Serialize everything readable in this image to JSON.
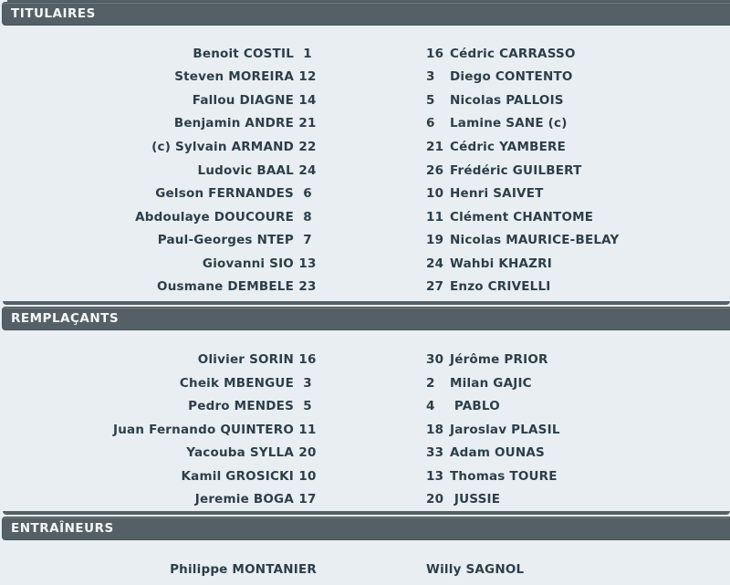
{
  "colors": {
    "page_bg": "#e8eef1",
    "header_bg": "#556066",
    "header_border": "#4a545b",
    "header_text": "#f5f7f8",
    "player_text": "#2d3e49"
  },
  "sections": [
    {
      "title": "TITULAIRES",
      "left": [
        {
          "name": "Benoit COSTIL",
          "num": "1"
        },
        {
          "name": "Steven MOREIRA",
          "num": "12"
        },
        {
          "name": "Fallou DIAGNE",
          "num": "14"
        },
        {
          "name": "Benjamin ANDRE",
          "num": "21"
        },
        {
          "name": "(c) Sylvain ARMAND",
          "num": "22"
        },
        {
          "name": "Ludovic BAAL",
          "num": "24"
        },
        {
          "name": "Gelson FERNANDES",
          "num": "6"
        },
        {
          "name": "Abdoulaye DOUCOURE",
          "num": "8"
        },
        {
          "name": "Paul-Georges NTEP",
          "num": "7"
        },
        {
          "name": "Giovanni SIO",
          "num": "13"
        },
        {
          "name": "Ousmane DEMBELE",
          "num": "23"
        }
      ],
      "right": [
        {
          "num": "16",
          "name": "Cédric CARRASSO"
        },
        {
          "num": "3",
          "name": "Diego CONTENTO"
        },
        {
          "num": "5",
          "name": "Nicolas PALLOIS"
        },
        {
          "num": "6",
          "name": "Lamine SANE (c)"
        },
        {
          "num": "21",
          "name": "Cédric YAMBERE"
        },
        {
          "num": "26",
          "name": "Frédéric GUILBERT"
        },
        {
          "num": "10",
          "name": "Henri SAIVET"
        },
        {
          "num": "11",
          "name": "Clément CHANTOME"
        },
        {
          "num": "19",
          "name": "Nicolas MAURICE-BELAY"
        },
        {
          "num": "24",
          "name": "Wahbi KHAZRI"
        },
        {
          "num": "27",
          "name": "Enzo CRIVELLI"
        }
      ]
    },
    {
      "title": "REMPLAÇANTS",
      "left": [
        {
          "name": "Olivier SORIN",
          "num": "16"
        },
        {
          "name": "Cheik MBENGUE",
          "num": "3"
        },
        {
          "name": "Pedro MENDES",
          "num": "5"
        },
        {
          "name": "Juan Fernando QUINTERO",
          "num": "11"
        },
        {
          "name": "Yacouba SYLLA",
          "num": "20"
        },
        {
          "name": "Kamil GROSICKI",
          "num": "10"
        },
        {
          "name": "Jeremie BOGA",
          "num": "17"
        }
      ],
      "right": [
        {
          "num": "30",
          "name": "Jérôme PRIOR"
        },
        {
          "num": "2",
          "name": "Milan GAJIC"
        },
        {
          "num": "4",
          "name": " PABLO"
        },
        {
          "num": "18",
          "name": "Jaroslav PLASIL"
        },
        {
          "num": "33",
          "name": "Adam OUNAS"
        },
        {
          "num": "13",
          "name": "Thomas TOURE"
        },
        {
          "num": "20",
          "name": " JUSSIE"
        }
      ]
    },
    {
      "title": "ENTRAÎNEURS",
      "coaches": {
        "left": "Philippe MONTANIER",
        "right": "Willy SAGNOL"
      }
    }
  ]
}
